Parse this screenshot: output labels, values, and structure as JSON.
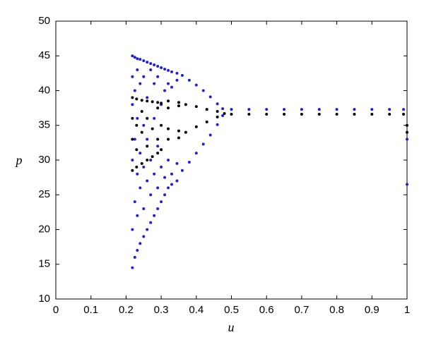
{
  "chart_data": {
    "type": "scatter",
    "xlabel": "u",
    "ylabel": "p",
    "xlim": [
      0,
      1
    ],
    "ylim": [
      10,
      50
    ],
    "xticks": [
      0,
      0.1,
      0.2,
      0.3,
      0.4,
      0.5,
      0.6,
      0.7,
      0.8,
      0.9,
      1
    ],
    "yticks": [
      10,
      15,
      20,
      25,
      30,
      35,
      40,
      45,
      50
    ],
    "series": [
      {
        "color": "#1f1fe0",
        "x": [
          0.218,
          0.218,
          0.218,
          0.218,
          0.218,
          0.218,
          0.225,
          0.225,
          0.225,
          0.225,
          0.225,
          0.232,
          0.232,
          0.232,
          0.232,
          0.232,
          0.232,
          0.24,
          0.24,
          0.24,
          0.24,
          0.24,
          0.25,
          0.25,
          0.25,
          0.25,
          0.25,
          0.25,
          0.26,
          0.26,
          0.26,
          0.26,
          0.26,
          0.27,
          0.27,
          0.27,
          0.27,
          0.27,
          0.28,
          0.28,
          0.28,
          0.28,
          0.28,
          0.29,
          0.29,
          0.29,
          0.29,
          0.29,
          0.3,
          0.3,
          0.3,
          0.3,
          0.31,
          0.31,
          0.31,
          0.31,
          0.32,
          0.32,
          0.32,
          0.32,
          0.33,
          0.33,
          0.33,
          0.33,
          0.345,
          0.345,
          0.345,
          0.345,
          0.36,
          0.36,
          0.38,
          0.38,
          0.4,
          0.4,
          0.42,
          0.42,
          0.44,
          0.44,
          0.46,
          0.46,
          0.475,
          0.475,
          0.5,
          0.55,
          0.6,
          0.65,
          0.7,
          0.75,
          0.8,
          0.85,
          0.9,
          0.95,
          0.99,
          1,
          1
        ],
        "values": [
          45,
          14.5,
          20,
          30,
          38,
          42,
          44.8,
          16,
          24,
          33,
          40,
          44.6,
          17,
          22,
          28,
          36,
          43,
          44.5,
          18,
          26,
          31,
          41,
          44.3,
          19,
          23,
          29,
          35,
          42,
          44.1,
          20,
          27,
          33,
          39,
          43.9,
          21,
          25,
          30,
          43,
          43.7,
          22,
          28,
          36,
          41,
          43.5,
          23,
          26,
          32,
          42,
          43.3,
          24,
          29,
          38,
          43.1,
          25,
          27.5,
          40,
          42.9,
          26,
          30,
          41,
          42.7,
          26.5,
          28,
          40.5,
          42.5,
          41.5,
          27,
          29.5,
          42.2,
          28.5,
          41.5,
          29.7,
          40.8,
          31,
          40,
          32.3,
          39.1,
          33.6,
          38.1,
          35.1,
          37.4,
          36.4,
          37.3,
          37.3,
          37.3,
          37.3,
          37.3,
          37.3,
          37.3,
          37.3,
          37.3,
          37.3,
          37.3,
          33,
          26.5
        ]
      },
      {
        "color": "#000000",
        "x": [
          0.218,
          0.218,
          0.218,
          0.218,
          0.23,
          0.23,
          0.23,
          0.23,
          0.245,
          0.245,
          0.245,
          0.245,
          0.26,
          0.26,
          0.26,
          0.26,
          0.275,
          0.275,
          0.275,
          0.29,
          0.29,
          0.29,
          0.29,
          0.3,
          0.3,
          0.3,
          0.32,
          0.32,
          0.32,
          0.32,
          0.35,
          0.35,
          0.35,
          0.35,
          0.37,
          0.37,
          0.4,
          0.4,
          0.43,
          0.43,
          0.46,
          0.46,
          0.48,
          0.5,
          0.55,
          0.6,
          0.65,
          0.7,
          0.75,
          0.8,
          0.85,
          0.9,
          0.95,
          0.99,
          1,
          1
        ],
        "values": [
          39,
          28.5,
          33,
          36,
          38.8,
          29,
          31.5,
          35,
          38.6,
          29.5,
          34,
          37,
          38.5,
          30,
          32,
          36,
          38.4,
          30.5,
          34.5,
          38.3,
          31,
          33,
          37.5,
          38.2,
          31.5,
          35,
          38.5,
          37.5,
          34.5,
          33,
          38.3,
          37.8,
          34.2,
          33.2,
          38,
          34,
          37.7,
          34.8,
          37.3,
          35.5,
          37,
          36.2,
          36.7,
          36.6,
          36.6,
          36.6,
          36.6,
          36.6,
          36.6,
          36.6,
          36.6,
          36.6,
          36.6,
          36.6,
          35,
          34
        ]
      }
    ]
  }
}
